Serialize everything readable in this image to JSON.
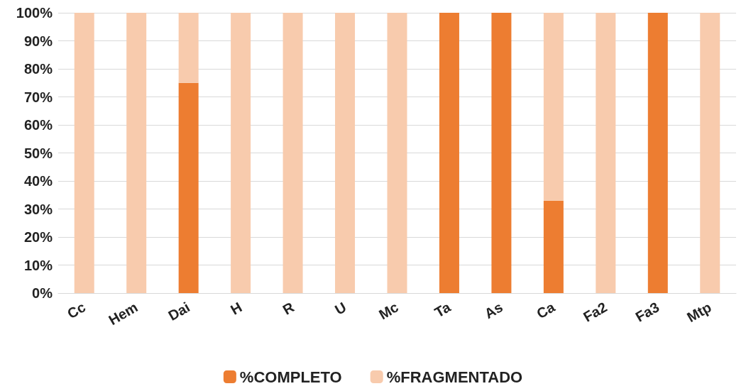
{
  "chart_data": {
    "type": "bar",
    "stacked": true,
    "categories": [
      "Cc",
      "Hem",
      "Dai",
      "H",
      "R",
      "U",
      "Mc",
      "Ta",
      "As",
      "Ca",
      "Fa2",
      "Fa3",
      "Mtp"
    ],
    "series": [
      {
        "name": "%COMPLETO",
        "color": "#ed7d31",
        "values": [
          0,
          0,
          75,
          0,
          0,
          0,
          0,
          100,
          100,
          33,
          0,
          100,
          0
        ]
      },
      {
        "name": "%FRAGMENTADO",
        "color": "#f8cbad",
        "values": [
          100,
          100,
          25,
          100,
          100,
          100,
          100,
          0,
          0,
          67,
          100,
          0,
          100
        ]
      }
    ],
    "ylim": [
      0,
      100
    ],
    "yticks": [
      {
        "value": 0,
        "label": "0%"
      },
      {
        "value": 10,
        "label": "10%"
      },
      {
        "value": 20,
        "label": "20%"
      },
      {
        "value": 30,
        "label": "30%"
      },
      {
        "value": 40,
        "label": "40%"
      },
      {
        "value": 50,
        "label": "50%"
      },
      {
        "value": 60,
        "label": "60%"
      },
      {
        "value": 70,
        "label": "70%"
      },
      {
        "value": 80,
        "label": "80%"
      },
      {
        "value": 90,
        "label": "90%"
      },
      {
        "value": 100,
        "label": "100%"
      }
    ],
    "grid": "y",
    "legend": "bottom"
  }
}
